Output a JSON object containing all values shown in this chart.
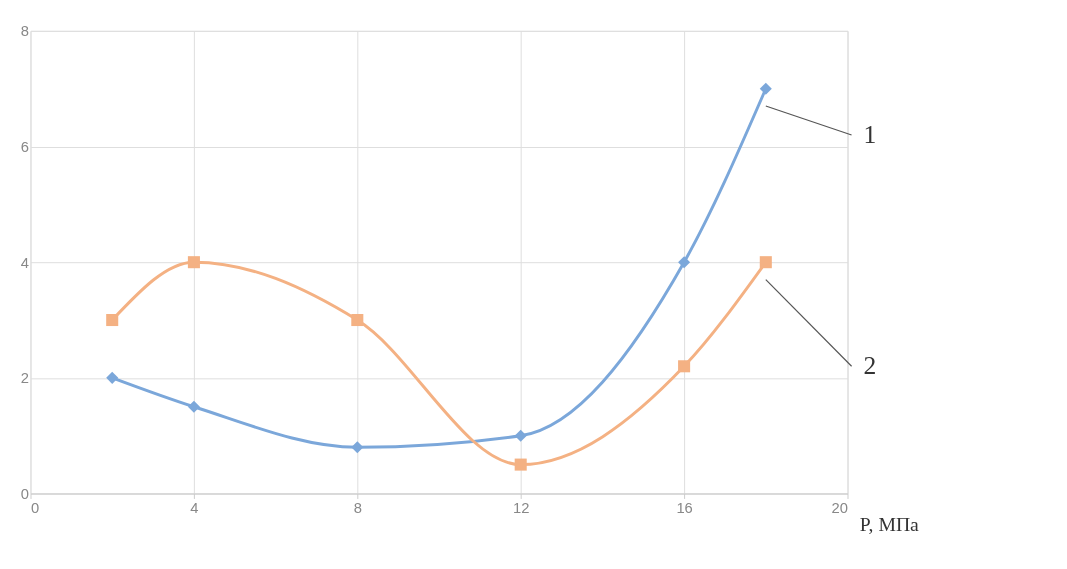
{
  "chart_data": {
    "type": "line",
    "xlabel": "P, МПа",
    "series": [
      {
        "name": "1",
        "color": "#7ba7da",
        "marker": "diamond",
        "x": [
          2,
          4,
          8,
          12,
          16,
          18
        ],
        "values": [
          2,
          1.5,
          0.8,
          1.0,
          4,
          7
        ]
      },
      {
        "name": "2",
        "color": "#f4b183",
        "marker": "square",
        "x": [
          2,
          4,
          8,
          12,
          16,
          18
        ],
        "values": [
          3,
          4,
          3,
          0.5,
          2.2,
          4
        ]
      }
    ],
    "xlim": [
      0,
      20
    ],
    "xticks": [
      0,
      4,
      8,
      12,
      16,
      20
    ],
    "ylim": [
      0,
      8
    ],
    "yticks": [
      0,
      2,
      4,
      6,
      8
    ],
    "grid": true,
    "legend": false,
    "line_style": "solid"
  }
}
